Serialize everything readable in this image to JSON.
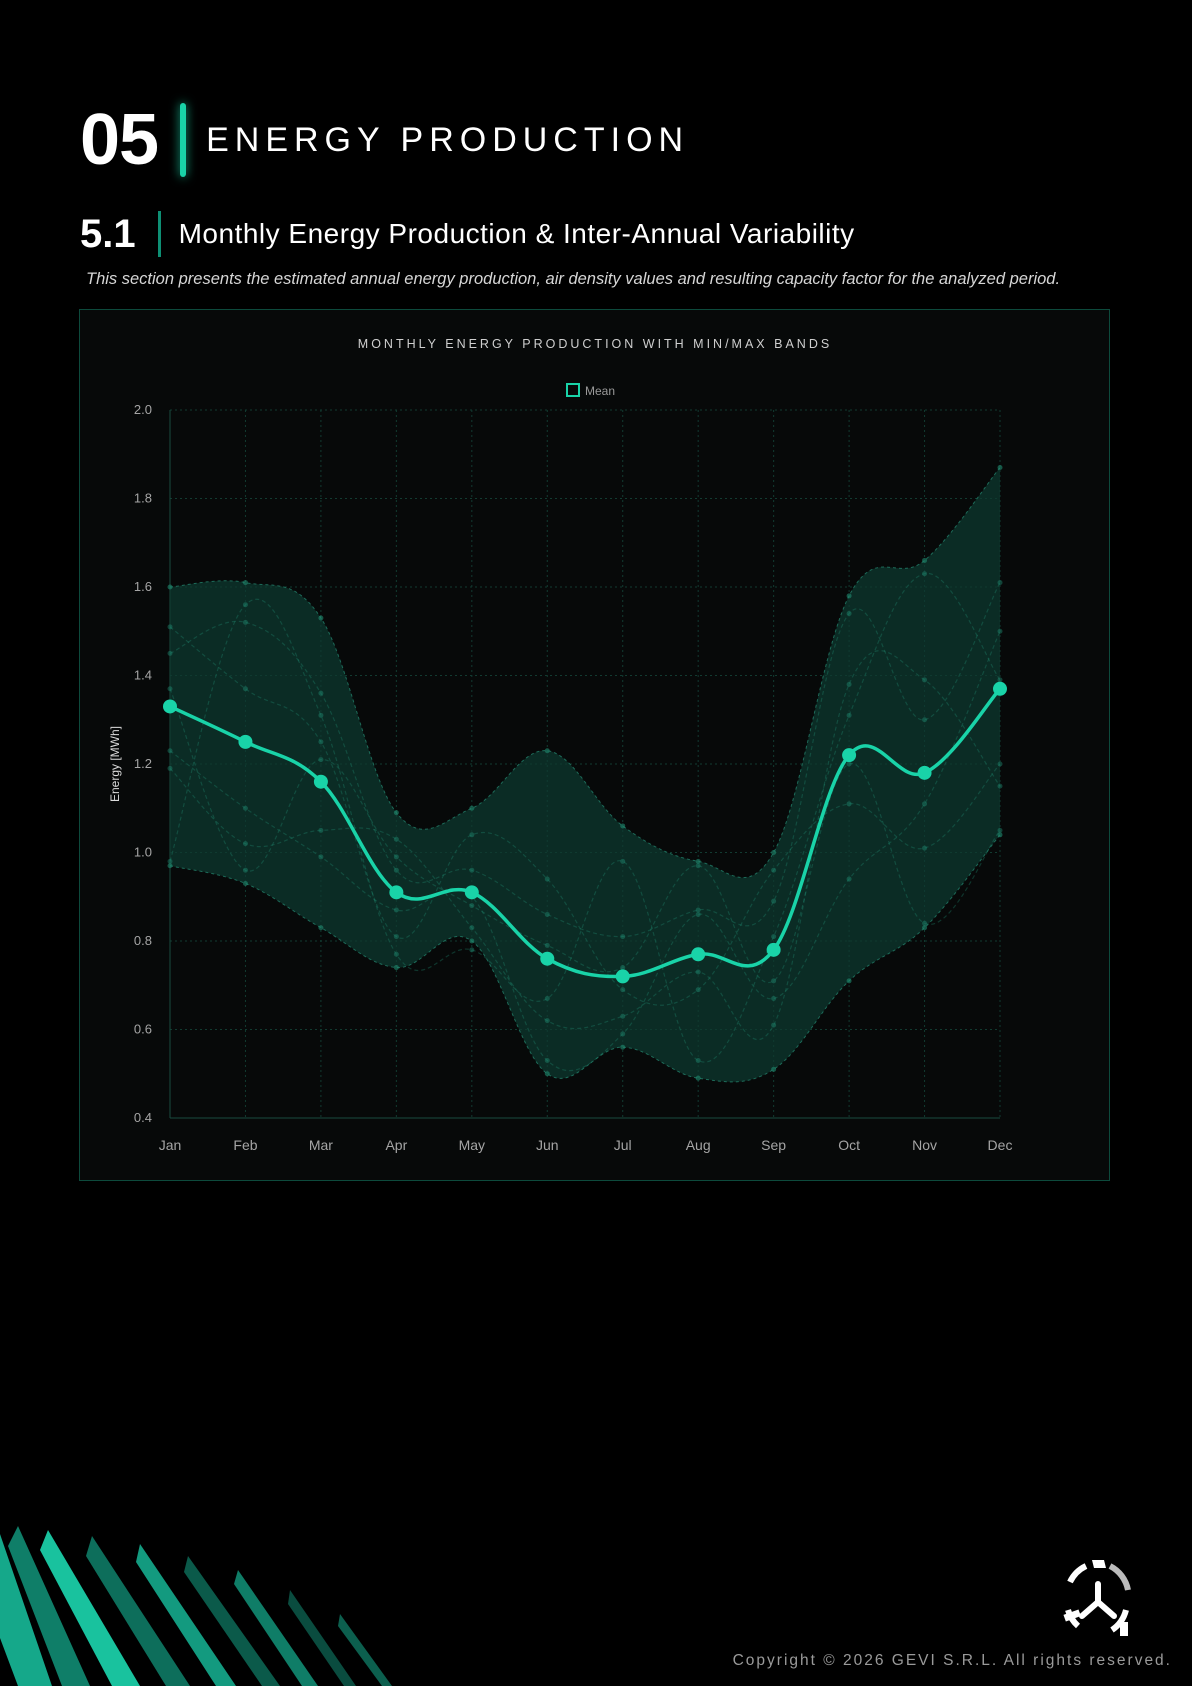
{
  "section": {
    "number": "05",
    "title": "ENERGY PRODUCTION"
  },
  "subsection": {
    "number": "5.1",
    "title": "Monthly Energy Production & Inter-Annual Variability"
  },
  "intro": "This section presents the estimated annual energy production, air density values and resulting capacity factor for the analyzed period.",
  "colors": {
    "accent": "#19d3a8",
    "band": "#0e3a31"
  },
  "icons": [
    "gevi-logo-icon",
    "wind-blade-pattern"
  ],
  "footer": {
    "copyright": "Copyright © 2026 GEVI S.R.L. All rights reserved."
  },
  "chart_data": {
    "type": "line",
    "title": "MONTHLY ENERGY PRODUCTION WITH MIN/MAX BANDS",
    "xlabel": "",
    "ylabel": "Energy [MWh]",
    "ylim": [
      0.4,
      2.0
    ],
    "yticks": [
      "2.0",
      "1.8",
      "1.6",
      "1.4",
      "1.2",
      "1.0",
      "0.8",
      "0.6",
      "0.4"
    ],
    "categories": [
      "Jan",
      "Feb",
      "Mar",
      "Apr",
      "May",
      "Jun",
      "Jul",
      "Aug",
      "Sep",
      "Oct",
      "Nov",
      "Dec"
    ],
    "legend": {
      "position": "top",
      "entries": [
        "Mean"
      ]
    },
    "grid": true,
    "series": [
      {
        "name": "Mean",
        "values": [
          1.33,
          1.25,
          1.16,
          0.91,
          0.91,
          0.76,
          0.72,
          0.77,
          0.78,
          1.22,
          1.18,
          1.37
        ]
      }
    ],
    "band": {
      "max": [
        1.6,
        1.61,
        1.53,
        1.09,
        1.1,
        1.23,
        1.06,
        0.98,
        1.0,
        1.58,
        1.66,
        1.87
      ],
      "min": [
        0.97,
        0.93,
        0.83,
        0.74,
        0.8,
        0.5,
        0.56,
        0.49,
        0.51,
        0.71,
        0.83,
        1.04
      ]
    },
    "yearly_series": [
      [
        1.45,
        1.52,
        1.36,
        0.96,
        0.96,
        0.86,
        0.81,
        0.87,
        0.89,
        1.54,
        1.3,
        1.61
      ],
      [
        1.19,
        1.02,
        1.05,
        1.03,
        0.83,
        0.62,
        0.63,
        0.73,
        0.61,
        1.38,
        1.39,
        1.15
      ],
      [
        1.51,
        1.37,
        1.25,
        0.81,
        1.04,
        0.94,
        0.69,
        0.69,
        0.96,
        1.11,
        1.01,
        1.2
      ],
      [
        1.23,
        1.1,
        0.99,
        0.87,
        0.9,
        0.53,
        0.59,
        0.86,
        0.67,
        0.94,
        1.11,
        1.5
      ],
      [
        0.98,
        1.56,
        1.31,
        0.77,
        0.78,
        0.67,
        0.98,
        0.53,
        0.81,
        1.31,
        1.63,
        1.39
      ],
      [
        1.37,
        0.96,
        1.21,
        0.99,
        0.88,
        0.79,
        0.74,
        0.97,
        0.71,
        1.2,
        0.84,
        1.05
      ]
    ]
  }
}
